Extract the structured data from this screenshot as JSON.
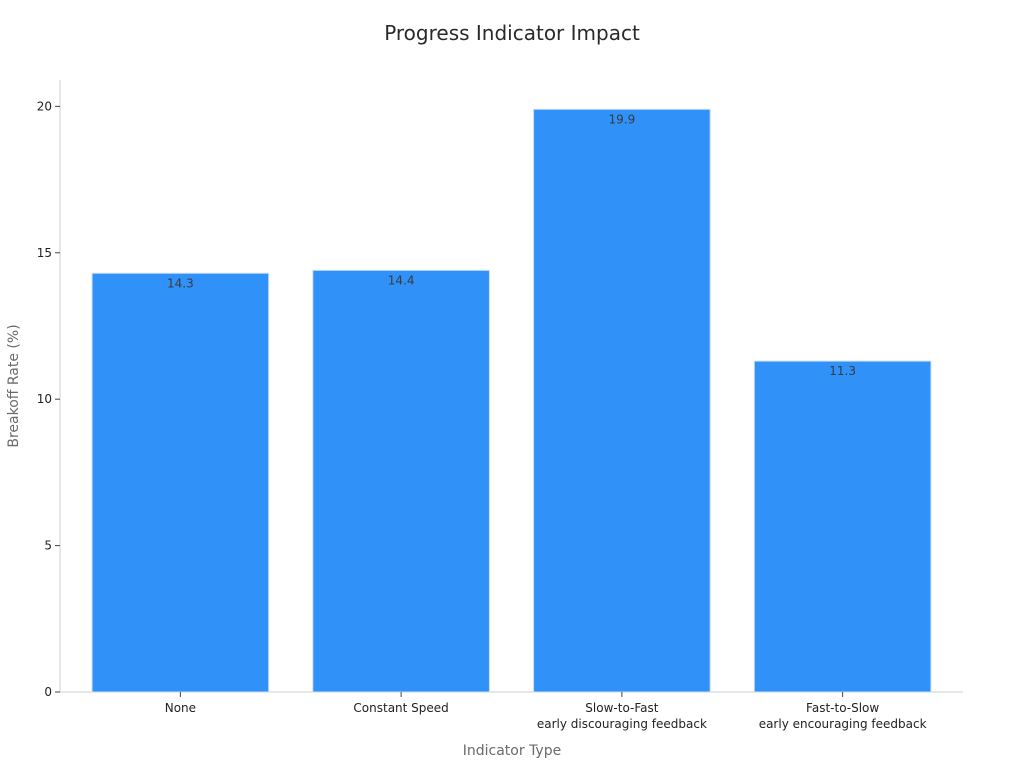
{
  "chart_data": {
    "type": "bar",
    "title": "Progress Indicator Impact",
    "xlabel": "Indicator Type",
    "ylabel": "Breakoff Rate (%)",
    "categories": [
      [
        "None"
      ],
      [
        "Constant Speed"
      ],
      [
        "Slow-to-Fast",
        "early discouraging feedback"
      ],
      [
        "Fast-to-Slow",
        "early encouraging feedback"
      ]
    ],
    "values": [
      14.3,
      14.4,
      19.9,
      11.3
    ],
    "data_labels": [
      "14.3",
      "14.4",
      "19.9",
      "11.3"
    ],
    "ylim": [
      0,
      20.9
    ],
    "yticks": [
      0,
      5,
      10,
      15,
      20
    ],
    "ytick_labels": [
      "0",
      "5",
      "10",
      "15",
      "20"
    ],
    "grid": false,
    "legend": "none",
    "colors": {
      "bar": "#3091f8",
      "bar_edge": "#c9dcf5",
      "axis": "#cfcfcf",
      "tick": "#444444"
    }
  }
}
